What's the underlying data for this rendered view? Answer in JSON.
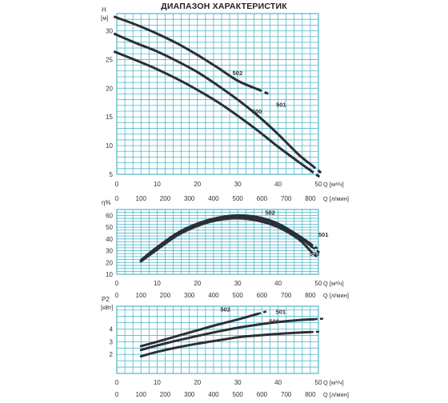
{
  "page": {
    "title": "ДИАПАЗОН ХАРАКТЕРИСТИК"
  },
  "colors": {
    "grid": "#4fb6c7",
    "curve": "#2b2f36",
    "text": "#333333"
  },
  "chart_data": [
    {
      "type": "line",
      "id": "head",
      "ylabel": "H",
      "yunit": "[м]",
      "xlim": [
        0,
        50
      ],
      "ylim": [
        5,
        33
      ],
      "yticks": [
        5,
        10,
        15,
        20,
        25,
        30
      ],
      "xticks_m3h": [
        "0",
        "10",
        "20",
        "30",
        "40",
        "50"
      ],
      "x_unit_m3h": "Q [м³/ч]",
      "grid": true,
      "series": [
        {
          "name": "502",
          "x": [
            0,
            5,
            10,
            15,
            20,
            25,
            30,
            35
          ],
          "y": [
            32.3,
            31,
            29.5,
            27.8,
            25.8,
            23.6,
            21.3,
            19.8
          ]
        },
        {
          "name": "501",
          "x": [
            0,
            5,
            10,
            15,
            20,
            25,
            30,
            35,
            40,
            45,
            48.5
          ],
          "y": [
            29.3,
            27.8,
            26.4,
            24.7,
            22.8,
            20.5,
            18,
            15.2,
            12,
            8.5,
            6.5
          ]
        },
        {
          "name": "500",
          "x": [
            0,
            5,
            10,
            15,
            20,
            25,
            30,
            35,
            40,
            45,
            48
          ],
          "y": [
            26.2,
            24.8,
            23.3,
            21.6,
            19.7,
            17.6,
            15.2,
            12.6,
            9.8,
            7.2,
            5.7
          ]
        }
      ],
      "labels": [
        {
          "text": "502",
          "x": 28.7,
          "y": 22.3
        },
        {
          "text": "501",
          "x": 39.5,
          "y": 16.8
        },
        {
          "text": "500",
          "x": 33.5,
          "y": 15.6
        }
      ]
    },
    {
      "type": "line",
      "id": "efficiency",
      "ylabel": "η%",
      "xlim": [
        0,
        50
      ],
      "ylim": [
        10,
        65
      ],
      "yticks": [
        10,
        20,
        30,
        40,
        50,
        60
      ],
      "xticks_m3h": [
        "0",
        "10",
        "20",
        "30",
        "40",
        "50"
      ],
      "x_unit_m3h": "Q [м³/ч]",
      "xticks_lmin": [
        "0",
        "100",
        "200",
        "300",
        "400",
        "500",
        "600",
        "700",
        "800"
      ],
      "x_unit_lmin": "Q [л/мин]",
      "grid": true,
      "series": [
        {
          "name": "502",
          "x": [
            6,
            10,
            15,
            20,
            25,
            30,
            35,
            40,
            45,
            48
          ],
          "y": [
            22,
            33,
            45,
            53,
            58,
            60,
            58.5,
            53,
            43,
            36
          ]
        },
        {
          "name": "501",
          "x": [
            6,
            10,
            15,
            20,
            25,
            30,
            35,
            40,
            45,
            48.5
          ],
          "y": [
            21,
            32,
            44,
            52,
            57,
            59,
            57.5,
            52,
            42,
            33
          ]
        },
        {
          "name": "500",
          "x": [
            6,
            10,
            15,
            20,
            25,
            30,
            35,
            40,
            45,
            48
          ],
          "y": [
            21,
            31,
            43,
            51,
            56,
            57.5,
            55.5,
            50,
            40,
            30
          ]
        }
      ],
      "labels": [
        {
          "text": "502",
          "x": 36.8,
          "y": 60.5
        },
        {
          "text": "501",
          "x": 50,
          "y": 42
        },
        {
          "text": "500",
          "x": 47.8,
          "y": 25.5
        }
      ]
    },
    {
      "type": "line",
      "id": "power",
      "ylabel": "P2",
      "yunit": "[кВт]",
      "xlim": [
        0,
        50
      ],
      "ylim": [
        0.5,
        5.8
      ],
      "yticks": [
        2,
        3,
        4
      ],
      "xticks_m3h": [
        "0",
        "10",
        "20",
        "30",
        "40",
        "50"
      ],
      "x_unit_m3h": "Q [м³/ч]",
      "xticks_lmin": [
        "0",
        "100",
        "200",
        "300",
        "400",
        "500",
        "600",
        "700",
        "800"
      ],
      "x_unit_lmin": "Q [л/мин]",
      "grid": true,
      "series": [
        {
          "name": "502",
          "x": [
            6,
            10,
            15,
            20,
            25,
            30,
            35
          ],
          "y": [
            2.65,
            3.0,
            3.45,
            3.9,
            4.35,
            4.75,
            5.2
          ]
        },
        {
          "name": "501",
          "x": [
            6,
            10,
            15,
            20,
            25,
            30,
            35,
            40,
            45,
            49
          ],
          "y": [
            2.35,
            2.7,
            3.1,
            3.45,
            3.8,
            4.1,
            4.35,
            4.55,
            4.7,
            4.78
          ]
        },
        {
          "name": "500",
          "x": [
            6,
            10,
            15,
            20,
            25,
            30,
            35,
            40,
            45,
            48
          ],
          "y": [
            1.85,
            2.2,
            2.55,
            2.85,
            3.1,
            3.35,
            3.5,
            3.62,
            3.72,
            3.76
          ]
        }
      ],
      "labels": [
        {
          "text": "502",
          "x": 25.7,
          "y": 5.4
        },
        {
          "text": "501",
          "x": 39.4,
          "y": 5.2
        },
        {
          "text": "500",
          "x": 37.8,
          "y": 4.45
        }
      ]
    }
  ]
}
